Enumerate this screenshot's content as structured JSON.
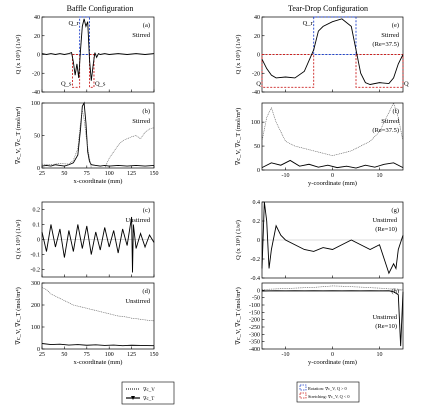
{
  "figure": {
    "left_title": "Baffle Configuration",
    "right_title": "Tear-Drop Configuration"
  },
  "legends": {
    "left": {
      "items": [
        {
          "label": "∇c_V"
        },
        {
          "label": "∇c_T"
        }
      ]
    },
    "right": {
      "items": [
        {
          "label": "Rotation: ∇c_V, Q > 0",
          "color": "#2244cc"
        },
        {
          "label": "Stretching: ∇c_V, Q < 0",
          "color": "#cc2222"
        }
      ]
    }
  },
  "chart_data": [
    {
      "id": "a",
      "type": "line",
      "panel_label": "(a)",
      "annotation": "Stirred",
      "xlabel": "",
      "ylabel": "Q (x 10⁵) (1/s²)",
      "xlim": [
        25,
        150
      ],
      "ylim": [
        -40,
        40
      ],
      "yticks": [
        -40,
        -20,
        0,
        20,
        40
      ],
      "xticks": [
        25,
        50,
        75,
        100,
        125,
        150
      ],
      "show_xtick_labels": false,
      "series": [
        {
          "style": "solid",
          "x": [
            25,
            30,
            35,
            40,
            45,
            50,
            55,
            58,
            60,
            62,
            64,
            66,
            68,
            70,
            72,
            74,
            76,
            78,
            80,
            82,
            84,
            86,
            88,
            90,
            95,
            100,
            110,
            120,
            130,
            140,
            150
          ],
          "y": [
            1,
            0,
            1,
            0,
            1,
            0,
            1,
            2,
            -8,
            -22,
            -10,
            -25,
            5,
            30,
            38,
            30,
            35,
            -5,
            -28,
            -12,
            2,
            -3,
            1,
            0,
            1,
            0,
            1,
            0,
            1,
            0,
            1
          ]
        }
      ],
      "boxes": [
        {
          "label": "Q_s",
          "color": "#cc2222",
          "x0": 59,
          "x1": 67,
          "y0": -35,
          "y1": 0
        },
        {
          "label": "Q_r",
          "color": "#2244cc",
          "x0": 67,
          "x1": 78,
          "y0": 0,
          "y1": 40
        },
        {
          "label": "Q_s",
          "color": "#cc2222",
          "x0": 78,
          "x1": 83,
          "y0": -35,
          "y1": 0
        }
      ]
    },
    {
      "id": "b",
      "type": "line",
      "panel_label": "(b)",
      "annotation": "Stirred",
      "xlabel": "x-coordinate (mm)",
      "ylabel": "∇c_V, ∇c_T (mol/m⁴)",
      "xlim": [
        25,
        150
      ],
      "ylim": [
        0,
        100
      ],
      "yticks": [
        0,
        50,
        100
      ],
      "xticks": [
        25,
        50,
        75,
        100,
        125,
        150
      ],
      "show_xtick_labels": true,
      "series": [
        {
          "name": "∇c_T",
          "style": "solid",
          "x": [
            25,
            30,
            35,
            40,
            45,
            50,
            55,
            60,
            65,
            68,
            70,
            72,
            74,
            76,
            78,
            80,
            85,
            90,
            95,
            100,
            110,
            120,
            130,
            140,
            150
          ],
          "y": [
            3,
            4,
            3,
            5,
            4,
            3,
            5,
            8,
            20,
            60,
            95,
            100,
            70,
            25,
            10,
            5,
            4,
            3,
            4,
            3,
            4,
            3,
            4,
            3,
            4
          ]
        },
        {
          "name": "∇c_V",
          "style": "dotted",
          "x": [
            25,
            35,
            45,
            55,
            60,
            65,
            68,
            70,
            72,
            75,
            78,
            80,
            85,
            90,
            95,
            100,
            105,
            110,
            115,
            120,
            125,
            130,
            135,
            140,
            145,
            150
          ],
          "y": [
            6,
            5,
            7,
            6,
            12,
            30,
            70,
            90,
            75,
            40,
            15,
            -10,
            -15,
            -8,
            0,
            15,
            25,
            35,
            42,
            45,
            48,
            50,
            45,
            55,
            60,
            62
          ]
        }
      ]
    },
    {
      "id": "c",
      "type": "line",
      "panel_label": "(c)",
      "annotation": "Unstirred",
      "xlabel": "",
      "ylabel": "Q (x 10⁵) (1/s²)",
      "xlim": [
        25,
        150
      ],
      "ylim": [
        -0.25,
        0.25
      ],
      "yticks": [
        -0.2,
        -0.1,
        0,
        0.1,
        0.2
      ],
      "xticks": [
        25,
        50,
        75,
        100,
        125,
        150
      ],
      "show_xtick_labels": false,
      "series": [
        {
          "style": "solid",
          "x": [
            25,
            30,
            35,
            40,
            45,
            50,
            55,
            60,
            65,
            70,
            75,
            80,
            85,
            90,
            95,
            100,
            105,
            110,
            115,
            120,
            125,
            126,
            127,
            130,
            135,
            140,
            145,
            150
          ],
          "y": [
            0.05,
            -0.08,
            0.1,
            -0.05,
            0.07,
            -0.12,
            0.06,
            -0.08,
            0.1,
            -0.06,
            0.09,
            -0.1,
            0.05,
            -0.07,
            0.08,
            -0.05,
            0.06,
            -0.09,
            0.07,
            -0.04,
            0.15,
            -0.22,
            0.1,
            -0.06,
            0.04,
            -0.05,
            0.03,
            -0.02
          ]
        }
      ]
    },
    {
      "id": "d",
      "type": "line",
      "panel_label": "(d)",
      "annotation": "Unstirred",
      "xlabel": "x-coordinate (mm)",
      "ylabel": "∇c_V, ∇c_T (mol/m⁴)",
      "xlim": [
        25,
        150
      ],
      "ylim": [
        0,
        300
      ],
      "yticks": [
        0,
        100,
        200,
        300
      ],
      "xticks": [
        25,
        50,
        75,
        100,
        125,
        150
      ],
      "show_xtick_labels": true,
      "series": [
        {
          "name": "∇c_V",
          "style": "dotted",
          "x": [
            25,
            30,
            35,
            40,
            45,
            50,
            55,
            60,
            65,
            70,
            75,
            80,
            85,
            90,
            95,
            100,
            105,
            110,
            115,
            120,
            125,
            130,
            135,
            140,
            145,
            150
          ],
          "y": [
            280,
            270,
            250,
            240,
            230,
            220,
            210,
            200,
            195,
            190,
            185,
            180,
            175,
            170,
            165,
            160,
            155,
            150,
            148,
            145,
            140,
            138,
            135,
            132,
            130,
            128
          ]
        },
        {
          "name": "∇c_T",
          "style": "solid",
          "x": [
            25,
            35,
            45,
            55,
            65,
            75,
            85,
            95,
            105,
            115,
            125,
            135,
            150
          ],
          "y": [
            25,
            20,
            22,
            18,
            20,
            17,
            19,
            16,
            18,
            15,
            17,
            16,
            15
          ]
        }
      ]
    },
    {
      "id": "e",
      "type": "line",
      "panel_label": "(e)",
      "annotation": "Stirred",
      "annotation2": "(Re=37.5)",
      "xlabel": "",
      "ylabel": "Q (x 10⁵) (1/s²)",
      "xlim": [
        -15,
        15
      ],
      "ylim": [
        -40,
        40
      ],
      "yticks": [
        -40,
        -20,
        0,
        20,
        40
      ],
      "xticks": [
        -10,
        0,
        10
      ],
      "show_xtick_labels": false,
      "series": [
        {
          "style": "solid",
          "x": [
            -15,
            -14,
            -13,
            -12,
            -10,
            -8,
            -6,
            -4,
            -3,
            -2,
            0,
            2,
            4,
            5,
            6,
            7,
            8,
            10,
            12,
            13,
            14,
            15
          ],
          "y": [
            -5,
            -15,
            -22,
            -25,
            -24,
            -25,
            -18,
            5,
            25,
            30,
            35,
            38,
            30,
            5,
            -20,
            -30,
            -32,
            -30,
            -31,
            -25,
            -10,
            0
          ]
        }
      ],
      "boxes": [
        {
          "label": "Q",
          "color": "#cc2222",
          "x0": -15,
          "x1": -4,
          "y0": -35,
          "y1": 0
        },
        {
          "label": "Q_r",
          "color": "#2244cc",
          "x0": -4,
          "x1": 5,
          "y0": 0,
          "y1": 40
        },
        {
          "label": "Q",
          "color": "#cc2222",
          "x0": 5,
          "x1": 15,
          "y0": -35,
          "y1": 0
        }
      ]
    },
    {
      "id": "f",
      "type": "line",
      "panel_label": "(f)",
      "annotation": "Stirred",
      "annotation2": "(Re=37.5)",
      "xlabel": "y-coordinate (mm)",
      "ylabel": "∇c_V, ∇c_T (mol/m⁴)",
      "xlim": [
        -15,
        15
      ],
      "ylim": [
        0,
        140
      ],
      "yticks": [
        0,
        50,
        100
      ],
      "xticks": [
        -10,
        0,
        10
      ],
      "show_xtick_labels": true,
      "series": [
        {
          "name": "∇c_V",
          "style": "dotted",
          "x": [
            -15,
            -14,
            -13,
            -12,
            -11,
            -10,
            -8,
            -6,
            -4,
            -2,
            0,
            2,
            4,
            6,
            8,
            10,
            11,
            12,
            13,
            14,
            15
          ],
          "y": [
            60,
            110,
            130,
            100,
            80,
            60,
            50,
            45,
            40,
            35,
            30,
            35,
            40,
            50,
            60,
            80,
            100,
            120,
            140,
            110,
            60
          ]
        },
        {
          "name": "∇c_T",
          "style": "solid",
          "x": [
            -15,
            -13,
            -11,
            -9,
            -7,
            -5,
            -3,
            -1,
            1,
            3,
            5,
            7,
            9,
            11,
            13,
            15
          ],
          "y": [
            5,
            15,
            10,
            20,
            8,
            12,
            6,
            10,
            5,
            8,
            4,
            10,
            6,
            12,
            15,
            5
          ]
        }
      ]
    },
    {
      "id": "g",
      "type": "line",
      "panel_label": "(g)",
      "annotation": "Unstirred",
      "annotation2": "(Re=10)",
      "xlabel": "",
      "ylabel": "Q (x 10⁵) (1/s²)",
      "xlim": [
        -15,
        15
      ],
      "ylim": [
        -0.4,
        0.4
      ],
      "yticks": [
        -0.4,
        -0.2,
        0,
        0.2,
        0.4
      ],
      "xticks": [
        -10,
        0,
        10
      ],
      "show_xtick_labels": false,
      "series": [
        {
          "style": "solid",
          "x": [
            -15,
            -14.5,
            -14,
            -13.5,
            -13,
            -12,
            -11,
            -10,
            -8,
            -6,
            -4,
            -2,
            0,
            2,
            4,
            6,
            8,
            10,
            11,
            12,
            13,
            13.5,
            14,
            15
          ],
          "y": [
            -0.3,
            0.42,
            0.2,
            -0.3,
            -0.1,
            0.15,
            0.05,
            0.0,
            -0.05,
            -0.1,
            -0.12,
            -0.08,
            -0.1,
            -0.05,
            0.0,
            -0.05,
            -0.1,
            -0.05,
            -0.2,
            -0.35,
            -0.25,
            -0.3,
            -0.1,
            0.05
          ]
        }
      ]
    },
    {
      "id": "h",
      "type": "line",
      "panel_label": "(h)",
      "annotation": "Unstirred",
      "annotation2": "(Re=10)",
      "xlabel": "y-coordinate (mm)",
      "ylabel": "∇c_V, ∇c_T (mol/m⁴)",
      "xlim": [
        -15,
        15
      ],
      "ylim": [
        -400,
        50
      ],
      "yticks": [
        -400,
        -350,
        -300,
        -250,
        -200,
        -150,
        -100,
        -50,
        0
      ],
      "xticks": [
        -10,
        0,
        10
      ],
      "show_xtick_labels": true,
      "series": [
        {
          "name": "∇c_V",
          "style": "dotted",
          "x": [
            -15,
            -12,
            -10,
            -8,
            -6,
            -4,
            -2,
            0,
            2,
            4,
            6,
            8,
            10,
            12,
            14,
            15
          ],
          "y": [
            5,
            10,
            12,
            15,
            18,
            20,
            25,
            30,
            28,
            25,
            22,
            18,
            15,
            10,
            8,
            5
          ]
        },
        {
          "name": "∇c_T",
          "style": "solid",
          "x": [
            -15,
            -12,
            -10,
            -8,
            -6,
            -4,
            -2,
            0,
            2,
            4,
            6,
            8,
            10,
            12,
            13,
            14,
            14.5,
            15
          ],
          "y": [
            -5,
            -3,
            -4,
            -3,
            -4,
            -3,
            -4,
            -3,
            -4,
            -3,
            -4,
            -3,
            -4,
            -3,
            -10,
            -30,
            -380,
            -10
          ]
        }
      ]
    }
  ]
}
